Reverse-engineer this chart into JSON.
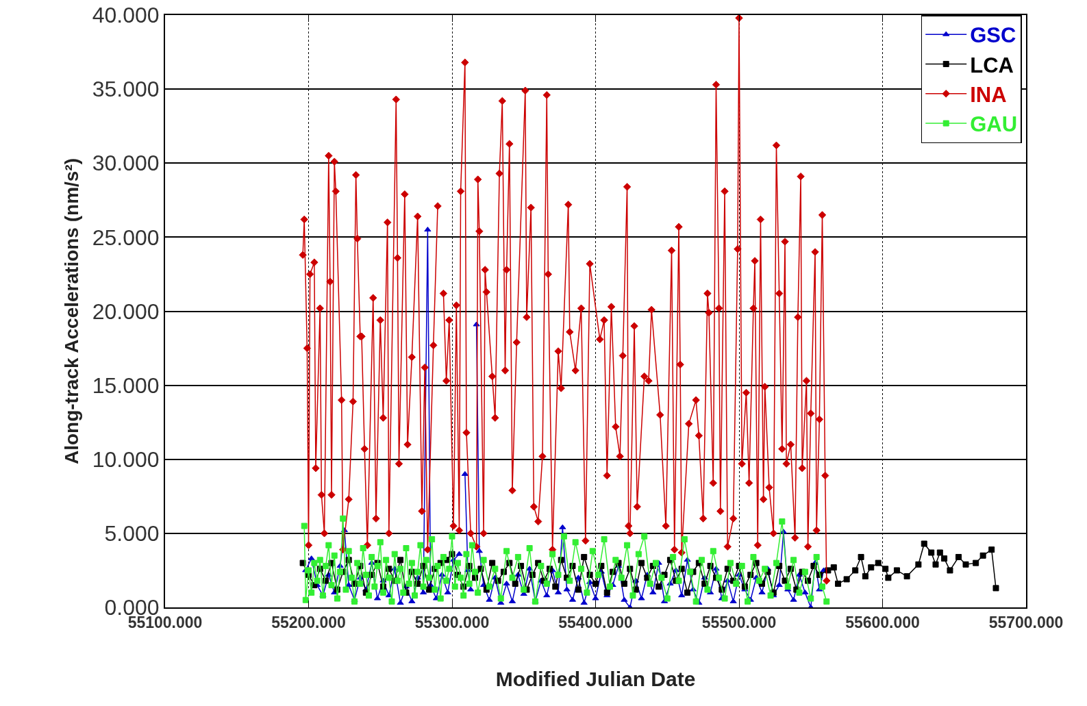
{
  "chart_data": {
    "type": "line",
    "xlabel": "Modified Julian Date",
    "ylabel": "Along-track Accelerations (nm/s²)",
    "xlim": [
      55100,
      55700
    ],
    "xticks": [
      {
        "value": 55100,
        "label": "55100.000"
      },
      {
        "value": 55200,
        "label": "55200.000"
      },
      {
        "value": 55300,
        "label": "55300.000"
      },
      {
        "value": 55400,
        "label": "55400.000"
      },
      {
        "value": 55500,
        "label": "55500.000"
      },
      {
        "value": 55600,
        "label": "55600.000"
      },
      {
        "value": 55700,
        "label": "55700.000"
      }
    ],
    "ylim": [
      0,
      40
    ],
    "yticks": [
      {
        "value": 0,
        "label": "0.000"
      },
      {
        "value": 5,
        "label": "5.000"
      },
      {
        "value": 10,
        "label": "10.000"
      },
      {
        "value": 15,
        "label": "15.000"
      },
      {
        "value": 20,
        "label": "20.000"
      },
      {
        "value": 25,
        "label": "25.000"
      },
      {
        "value": 30,
        "label": "30.000"
      },
      {
        "value": 35,
        "label": "35.000"
      },
      {
        "value": 40,
        "label": "40.000"
      }
    ],
    "grid": true,
    "legend": "top right",
    "line_style": "solid",
    "series": [
      {
        "name": "GSC",
        "color": "#0000cc",
        "marker": "triangle",
        "x": [
          55198,
          55202,
          55206,
          55210,
          55214,
          55218,
          55222,
          55225,
          55228,
          55232,
          55236,
          55240,
          55244,
          55248,
          55252,
          55256,
          55260,
          55264,
          55268,
          55272,
          55276,
          55280,
          55283,
          55285,
          55289,
          55293,
          55297,
          55301,
          55305,
          55307,
          55309,
          55311,
          55313,
          55315,
          55317,
          55319,
          55322,
          55326,
          55330,
          55334,
          55338,
          55342,
          55346,
          55350,
          55354,
          55358,
          55362,
          55366,
          55370,
          55374,
          55377,
          55380,
          55384,
          55388,
          55392,
          55396,
          55400,
          55404,
          55408,
          55412,
          55416,
          55420,
          55424,
          55428,
          55432,
          55436,
          55440,
          55444,
          55448,
          55452,
          55456,
          55460,
          55464,
          55468,
          55472,
          55476,
          55480,
          55484,
          55488,
          55492,
          55496,
          55500,
          55504,
          55508,
          55512,
          55516,
          55520,
          55524,
          55528,
          55531,
          55534,
          55538,
          55542,
          55546,
          55550,
          55553,
          55556,
          55559
        ],
        "values": [
          2.5,
          3.3,
          1.5,
          0.8,
          2.2,
          1.0,
          2.8,
          5.2,
          1.5,
          0.5,
          2.0,
          1.2,
          3.0,
          0.6,
          1.8,
          0.8,
          2.6,
          0.3,
          1.4,
          0.4,
          2.0,
          1.0,
          25.5,
          1.5,
          0.6,
          2.2,
          1.0,
          3.2,
          3.6,
          null,
          9.0,
          2.5,
          1.2,
          null,
          19.1,
          3.8,
          1.5,
          0.5,
          2.0,
          0.3,
          1.6,
          0.4,
          2.2,
          0.9,
          2.6,
          0.4,
          1.8,
          0.8,
          2.5,
          1.0,
          5.4,
          1.2,
          0.5,
          2.0,
          0.3,
          1.7,
          0.6,
          2.4,
          0.8,
          1.5,
          2.8,
          0.5,
          0.0,
          1.8,
          0.6,
          2.2,
          1.0,
          3.0,
          0.4,
          1.6,
          2.5,
          0.8,
          3.2,
          1.2,
          0.3,
          2.0,
          1.0,
          2.6,
          0.6,
          1.8,
          0.4,
          2.2,
          1.2,
          0.5,
          2.0,
          1.0,
          2.6,
          0.8,
          1.5,
          5.1,
          1.2,
          0.5,
          2.2,
          1.0,
          0.0,
          3.0,
          1.2,
          2.5
        ]
      },
      {
        "name": "LCA",
        "color": "#000000",
        "marker": "square",
        "x": [
          55196,
          55200,
          55204,
          55208,
          55212,
          55216,
          55220,
          55224,
          55228,
          55232,
          55236,
          55240,
          55244,
          55248,
          55252,
          55256,
          55260,
          55264,
          55268,
          55272,
          55276,
          55280,
          55284,
          55288,
          55292,
          55296,
          55300,
          55304,
          55308,
          55312,
          55316,
          55320,
          55324,
          55328,
          55332,
          55336,
          55340,
          55344,
          55348,
          55352,
          55356,
          55360,
          55364,
          55368,
          55372,
          55376,
          55380,
          55384,
          55388,
          55392,
          55396,
          55400,
          55404,
          55408,
          55412,
          55416,
          55420,
          55424,
          55428,
          55432,
          55436,
          55440,
          55444,
          55448,
          55452,
          55456,
          55460,
          55464,
          55468,
          55472,
          55476,
          55480,
          55484,
          55488,
          55492,
          55496,
          55500,
          55504,
          55508,
          55512,
          55516,
          55520,
          55524,
          55528,
          55532,
          55536,
          55540,
          55544,
          55548,
          55552,
          55556,
          55562,
          55566,
          55569,
          55575,
          55581,
          55585,
          55588,
          55592,
          55597,
          55602,
          55604,
          55610,
          55617,
          55625,
          55629,
          55634,
          55637,
          55640,
          55643,
          55647,
          55653,
          55658,
          55665,
          55670,
          55676,
          55679
        ],
        "values": [
          3.0,
          2.2,
          1.5,
          2.6,
          1.8,
          3.0,
          1.2,
          2.4,
          3.2,
          1.6,
          2.8,
          1.0,
          2.2,
          3.0,
          1.4,
          2.6,
          1.8,
          3.2,
          1.0,
          2.4,
          1.6,
          2.8,
          1.2,
          2.6,
          3.0,
          3.2,
          3.6,
          2.2,
          1.4,
          2.8,
          2.0,
          2.6,
          1.2,
          3.0,
          1.8,
          2.4,
          3.0,
          1.6,
          2.8,
          1.2,
          2.2,
          3.0,
          1.8,
          2.6,
          1.4,
          3.2,
          2.0,
          2.8,
          1.2,
          3.4,
          2.2,
          1.6,
          2.8,
          1.0,
          2.4,
          3.0,
          1.6,
          2.6,
          1.2,
          3.0,
          2.0,
          2.8,
          1.4,
          2.2,
          3.2,
          1.8,
          2.6,
          1.0,
          2.4,
          3.0,
          1.6,
          2.8,
          2.0,
          1.2,
          2.6,
          1.8,
          2.8,
          1.4,
          2.2,
          3.0,
          1.6,
          2.4,
          1.0,
          2.8,
          1.8,
          2.6,
          1.2,
          2.4,
          1.8,
          2.8,
          2.2,
          2.5,
          2.7,
          1.6,
          1.9,
          2.5,
          3.4,
          2.1,
          2.7,
          3.0,
          2.6,
          2.0,
          2.5,
          2.1,
          2.9,
          4.3,
          3.7,
          2.9,
          3.7,
          3.3,
          2.5,
          3.4,
          2.9,
          3.0,
          3.5,
          3.9,
          1.3
        ]
      },
      {
        "name": "INA",
        "color": "#cc0000",
        "marker": "diamond",
        "x": [
          55196,
          55197,
          55199,
          55200,
          55201,
          55204,
          55205,
          55208,
          55209,
          55211,
          55214,
          55215,
          55216,
          55218,
          55219,
          55223,
          55224,
          55228,
          55231,
          55233,
          55234,
          55236,
          55237,
          55239,
          55241,
          55245,
          55247,
          55250,
          55252,
          55255,
          55256,
          55261,
          55262,
          55263,
          55267,
          55269,
          55272,
          55276,
          55279,
          55281,
          55283,
          55287,
          55290,
          55292,
          55294,
          55296,
          55298,
          55301,
          55303,
          55305,
          55306,
          55309,
          55310,
          55313,
          55317,
          55318,
          55319,
          55322,
          55323,
          55324,
          55328,
          55330,
          55333,
          55335,
          55337,
          55338,
          55340,
          55342,
          55345,
          55351,
          55352,
          55355,
          55357,
          55360,
          55363,
          55366,
          55367,
          55370,
          55374,
          55376,
          55381,
          55382,
          55386,
          55390,
          55393,
          55396,
          55403,
          55406,
          55408,
          55411,
          55414,
          55417,
          55419,
          55422,
          55423,
          55424,
          55427,
          55429,
          55434,
          55437,
          55439,
          55445,
          55449,
          55453,
          55455,
          55458,
          55459,
          55460,
          55465,
          55470,
          55472,
          55475,
          55478,
          55479,
          55482,
          55484,
          55486,
          55487,
          55490,
          55492,
          55496,
          55499,
          55500,
          55502,
          55505,
          55507,
          55510,
          55511,
          55513,
          55515,
          55517,
          55518,
          55521,
          55524,
          55526,
          55528,
          55530,
          55532,
          55533,
          55536,
          55539,
          55541,
          55543,
          55544,
          55547,
          55548,
          55550,
          55553,
          55554,
          55556,
          55558,
          55560,
          55561
        ],
        "values": [
          23.8,
          26.2,
          17.5,
          4.2,
          22.5,
          23.3,
          9.4,
          20.2,
          7.6,
          5.0,
          30.5,
          22.0,
          7.6,
          30.1,
          28.1,
          14.0,
          3.9,
          7.3,
          13.9,
          29.2,
          24.9,
          18.3,
          18.3,
          10.7,
          4.2,
          20.9,
          6.0,
          19.4,
          12.8,
          26.0,
          5.0,
          34.3,
          23.6,
          9.7,
          27.9,
          11.0,
          16.9,
          26.4,
          6.5,
          16.2,
          3.9,
          17.7,
          27.1,
          null,
          21.2,
          15.3,
          19.4,
          5.5,
          20.4,
          5.2,
          28.1,
          36.8,
          11.8,
          5.0,
          4.1,
          28.9,
          25.4,
          5.0,
          22.8,
          21.3,
          15.6,
          12.8,
          29.3,
          34.2,
          16.0,
          22.8,
          31.3,
          7.9,
          17.9,
          34.9,
          19.6,
          27.0,
          6.8,
          5.8,
          10.2,
          34.6,
          22.5,
          3.9,
          17.3,
          14.8,
          27.2,
          18.6,
          16.0,
          20.2,
          4.5,
          23.2,
          18.1,
          19.4,
          8.9,
          20.3,
          12.2,
          10.2,
          17.0,
          28.4,
          5.5,
          5.0,
          19.0,
          6.8,
          15.6,
          15.3,
          20.1,
          13.0,
          5.5,
          24.1,
          3.9,
          25.7,
          16.4,
          3.7,
          12.4,
          14.0,
          11.6,
          6.0,
          21.2,
          19.9,
          8.4,
          35.3,
          20.2,
          6.5,
          28.1,
          4.1,
          6.0,
          24.2,
          39.8,
          9.7,
          14.5,
          8.4,
          20.2,
          23.4,
          4.2,
          26.2,
          7.3,
          14.9,
          8.1,
          5.0,
          31.2,
          21.2,
          10.7,
          24.7,
          9.7,
          11.0,
          4.7,
          19.6,
          29.1,
          9.4,
          15.3,
          4.1,
          13.1,
          24.0,
          5.2,
          12.7,
          26.5,
          8.9,
          1.8
        ]
      },
      {
        "name": "GAU",
        "color": "#33ee33",
        "marker": "square",
        "x": [
          55197,
          55198,
          55200,
          55202,
          55204,
          55206,
          55208,
          55210,
          55212,
          55214,
          55216,
          55218,
          55220,
          55222,
          55224,
          55226,
          55228,
          55230,
          55232,
          55234,
          55236,
          55238,
          55240,
          55242,
          55244,
          55246,
          55248,
          55250,
          55252,
          55254,
          55256,
          55258,
          55260,
          55262,
          55264,
          55266,
          55268,
          55270,
          55272,
          55274,
          55276,
          55278,
          55280,
          55282,
          55284,
          55286,
          55288,
          55290,
          55292,
          55294,
          55296,
          55298,
          55300,
          55302,
          55304,
          55306,
          55308,
          55310,
          55312,
          55314,
          55316,
          55318,
          55322,
          55326,
          55330,
          55334,
          55338,
          55342,
          55346,
          55350,
          55354,
          55358,
          55362,
          55366,
          55370,
          55374,
          55378,
          55382,
          55386,
          55390,
          55394,
          55398,
          55402,
          55406,
          55410,
          55414,
          55418,
          55422,
          55426,
          55430,
          55434,
          55438,
          55442,
          55446,
          55450,
          55454,
          55458,
          55462,
          55466,
          55470,
          55474,
          55478,
          55482,
          55486,
          55490,
          55494,
          55498,
          55502,
          55506,
          55510,
          55514,
          55518,
          55522,
          55526,
          55530,
          55534,
          55538,
          55542,
          55546,
          55550,
          55554,
          55558,
          55561
        ],
        "values": [
          5.5,
          0.5,
          2.5,
          1.0,
          3.0,
          1.8,
          3.2,
          0.8,
          2.8,
          4.2,
          1.5,
          3.5,
          0.6,
          2.4,
          6.0,
          1.2,
          3.8,
          2.0,
          0.4,
          3.0,
          1.6,
          4.0,
          2.2,
          0.8,
          3.4,
          1.4,
          2.8,
          4.4,
          1.0,
          3.2,
          2.0,
          0.4,
          3.6,
          1.8,
          2.6,
          1.0,
          4.0,
          1.6,
          3.0,
          0.8,
          2.4,
          4.2,
          1.4,
          3.2,
          2.0,
          4.6,
          1.2,
          2.8,
          0.6,
          3.4,
          1.8,
          2.6,
          4.8,
          1.4,
          3.0,
          2.0,
          0.8,
          3.6,
          1.6,
          4.2,
          2.4,
          1.0,
          3.2,
          1.4,
          2.6,
          0.6,
          3.8,
          2.0,
          3.4,
          1.2,
          4.0,
          0.4,
          2.8,
          1.6,
          3.6,
          2.2,
          4.8,
          1.8,
          4.4,
          2.6,
          1.0,
          3.8,
          2.2,
          4.6,
          1.4,
          3.2,
          2.0,
          4.2,
          0.8,
          3.6,
          4.8,
          1.6,
          3.0,
          2.0,
          0.6,
          3.4,
          1.8,
          4.6,
          2.4,
          0.4,
          3.2,
          1.2,
          3.8,
          2.0,
          0.6,
          3.0,
          1.6,
          2.8,
          0.4,
          3.4,
          1.8,
          2.6,
          0.8,
          3.0,
          5.8,
          1.4,
          3.2,
          1.0,
          2.4,
          0.6,
          3.4,
          1.4,
          0.4
        ]
      }
    ]
  }
}
